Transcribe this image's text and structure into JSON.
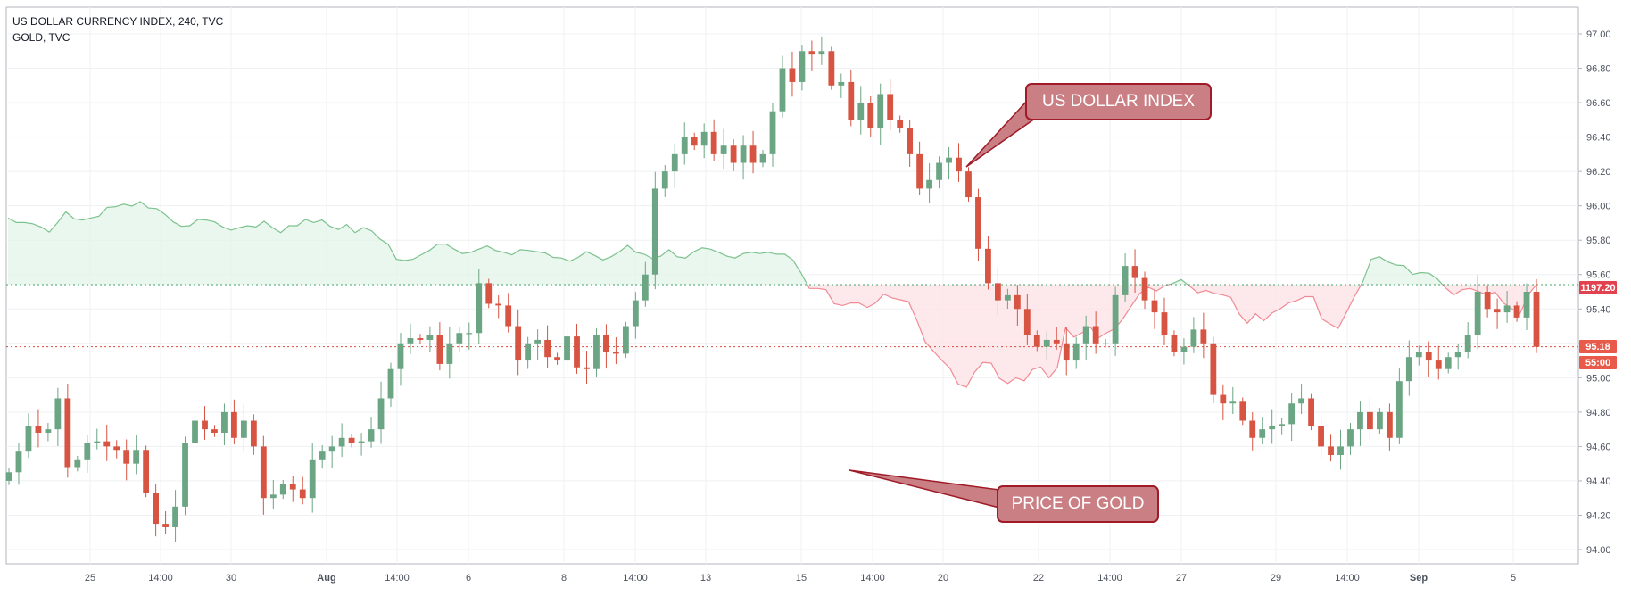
{
  "legend": {
    "line1": "US DOLLAR CURRENCY INDEX, 240, TVC",
    "line2": "GOLD, TVC"
  },
  "annotations": {
    "dollar": "US DOLLAR INDEX",
    "gold": "PRICE OF GOLD"
  },
  "price_tags": {
    "gold_last": "1197.20",
    "dxy_last": "95.18",
    "countdown": "55:00"
  },
  "colors": {
    "up": "#6ba583",
    "down": "#d75442",
    "gold_above": "#7cc28e",
    "gold_below": "#f08a94",
    "callout_border": "#9e1b27"
  },
  "chart_data": {
    "type": "candlestick",
    "title": "US DOLLAR CURRENCY INDEX, 240, TVC",
    "y_axis": {
      "ticks": [
        "97.00",
        "96.80",
        "96.60",
        "96.40",
        "96.20",
        "96.00",
        "95.80",
        "95.60",
        "95.40",
        "95.20",
        "95.00",
        "94.80",
        "94.60",
        "94.40",
        "94.20",
        "94.00"
      ],
      "ylim": [
        93.9,
        97.1
      ]
    },
    "x_axis": {
      "ticks": [
        "25",
        "14:00",
        "30",
        "Aug",
        "14:00",
        "6",
        "8",
        "14:00",
        "13",
        "15",
        "14:00",
        "20",
        "22",
        "14:00",
        "27",
        "29",
        "14:00",
        "Sep",
        "5"
      ]
    },
    "dxy_close": [
      94.45,
      94.57,
      94.72,
      94.68,
      94.7,
      94.88,
      94.48,
      94.52,
      94.62,
      94.63,
      94.6,
      94.58,
      94.5,
      94.58,
      94.33,
      94.15,
      94.13,
      94.25,
      94.62,
      94.75,
      94.7,
      94.68,
      94.8,
      94.65,
      94.75,
      94.6,
      94.3,
      94.32,
      94.38,
      94.35,
      94.3,
      94.52,
      94.57,
      94.6,
      94.65,
      94.62,
      94.63,
      94.7,
      94.88,
      95.05,
      95.2,
      95.23,
      95.22,
      95.25,
      95.08,
      95.2,
      95.26,
      95.26,
      95.55,
      95.43,
      95.42,
      95.3,
      95.1,
      95.2,
      95.22,
      95.12,
      95.1,
      95.24,
      95.06,
      95.05,
      95.25,
      95.15,
      95.14,
      95.3,
      95.45,
      95.6,
      96.1,
      96.2,
      96.3,
      96.4,
      96.35,
      96.43,
      96.3,
      96.35,
      96.25,
      96.35,
      96.25,
      96.3,
      96.55,
      96.8,
      96.72,
      96.9,
      96.88,
      96.9,
      96.7,
      96.72,
      96.5,
      96.6,
      96.45,
      96.65,
      96.5,
      96.45,
      96.3,
      96.1,
      96.15,
      96.25,
      96.28,
      96.2,
      96.05,
      95.75,
      95.55,
      95.45,
      95.48,
      95.4,
      95.25,
      95.18,
      95.22,
      95.2,
      95.1,
      95.2,
      95.3,
      95.2,
      95.2,
      95.48,
      95.65,
      95.58,
      95.45,
      95.38,
      95.25,
      95.15,
      95.18,
      95.28,
      95.2,
      94.9,
      94.85,
      94.86,
      94.75,
      94.65,
      94.7,
      94.72,
      94.73,
      94.85,
      94.88,
      94.72,
      94.6,
      94.55,
      94.6,
      94.7,
      94.8,
      94.7,
      94.8,
      94.65,
      94.98,
      95.12,
      95.15,
      95.1,
      95.05,
      95.12,
      95.15,
      95.25,
      95.5,
      95.4,
      95.38,
      95.42,
      95.35,
      95.5,
      95.18
    ],
    "gold_price_line": [
      1218.2,
      1216.8,
      1216.8,
      1216.4,
      1215.4,
      1213.8,
      1216.8,
      1220.2,
      1218.0,
      1217.6,
      1218.2,
      1218.8,
      1221.6,
      1221.8,
      1222.6,
      1222.0,
      1223.4,
      1221.4,
      1221.2,
      1219.4,
      1217.0,
      1215.6,
      1215.8,
      1217.8,
      1217.6,
      1217.0,
      1215.4,
      1214.4,
      1215.2,
      1215.8,
      1215.4,
      1217.2,
      1215.2,
      1213.6,
      1215.8,
      1215.8,
      1217.8,
      1216.8,
      1217.6,
      1215.6,
      1214.6,
      1216.2,
      1213.6,
      1215.2,
      1214.2,
      1211.6,
      1210.0,
      1205.2,
      1204.8,
      1205.2,
      1206.6,
      1208.0,
      1210.0,
      1210.0,
      1208.4,
      1207.0,
      1207.4,
      1208.4,
      1209.4,
      1208.0,
      1207.4,
      1206.6,
      1208.2,
      1208.0,
      1207.6,
      1207.2,
      1205.8,
      1205.6,
      1204.6,
      1205.8,
      1207.6,
      1206.4,
      1205.0,
      1206.0,
      1207.6,
      1209.6,
      1207.4,
      1206.8,
      1205.4,
      1206.2,
      1208.2,
      1206.0,
      1205.6,
      1207.6,
      1208.8,
      1208.4,
      1207.4,
      1206.2,
      1205.6,
      1207.0,
      1207.4,
      1207.0,
      1207.4,
      1206.8,
      1206.8,
      1205.0,
      1200.8,
      1196.0,
      1196.0,
      1195.6,
      1191.2,
      1190.6,
      1191.4,
      1191.4,
      1190.0,
      1191.4,
      1194.2,
      1193.0,
      1192.4,
      1191.8,
      1186.0,
      1179.2,
      1176.2,
      1173.4,
      1170.8,
      1165.8,
      1164.8,
      1169.6,
      1172.6,
      1172.4,
      1167.6,
      1166.0,
      1167.8,
      1166.8,
      1170.4,
      1171.2,
      1167.8,
      1171.0,
      1183.6,
      1180.6,
      1182.0,
      1183.8,
      1180.4,
      1182.0,
      1183.4,
      1186.6,
      1190.6,
      1194.4,
      1196.4,
      1195.2,
      1196.8,
      1197.6,
      1198.8,
      1196.8,
      1194.6,
      1195.4,
      1194.4,
      1194.0,
      1193.2,
      1188.0,
      1185.0,
      1188.0,
      1185.8,
      1188.2,
      1189.6,
      1191.4,
      1192.2,
      1193.4,
      1193.4,
      1186.4,
      1184.8,
      1183.4,
      1188.4,
      1193.6,
      1198.2,
      1205.2,
      1206.0,
      1204.4,
      1203.4,
      1203.2,
      1200.4,
      1201.0,
      1200.8,
      1199.0,
      1196.2,
      1194.0,
      1195.6,
      1196.0,
      1195.0,
      1194.0,
      1194.8,
      1191.4,
      1189.6,
      1188.0,
      1194.0,
      1197.2
    ]
  }
}
